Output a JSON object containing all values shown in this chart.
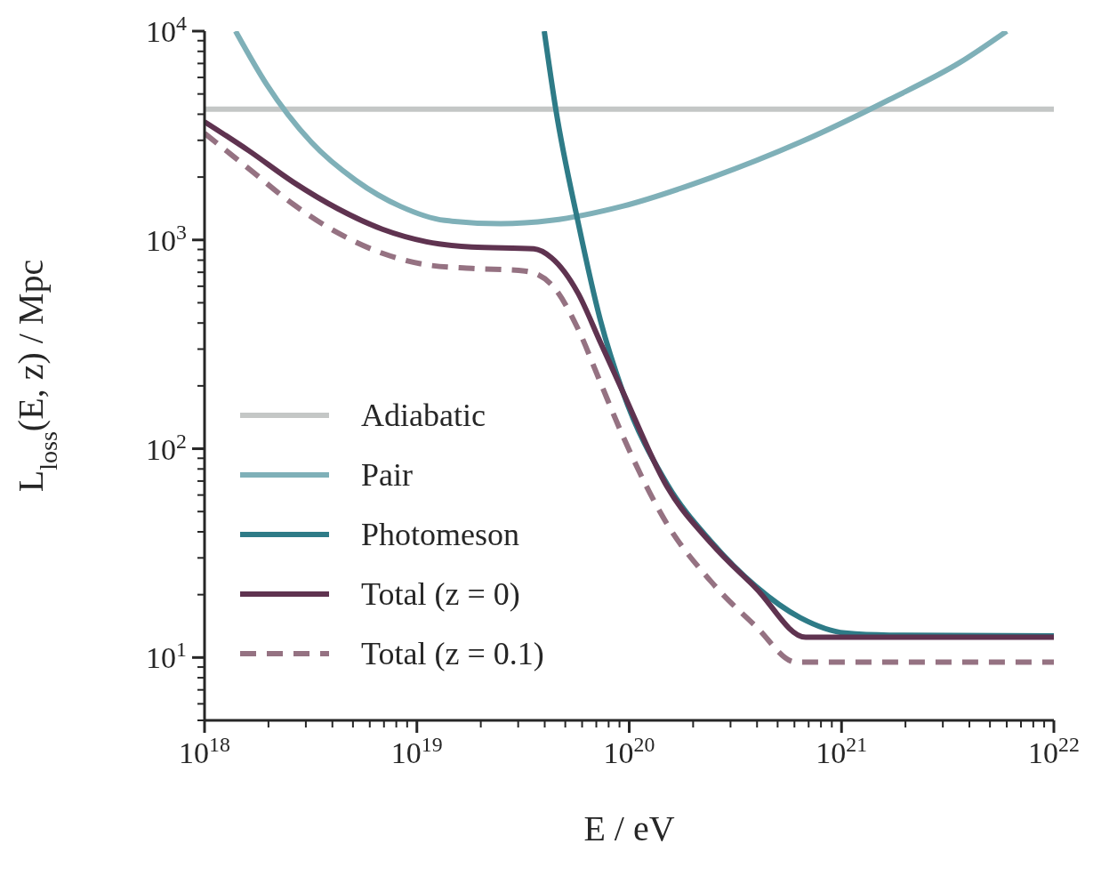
{
  "chart_data": {
    "type": "line",
    "xlabel": "E / eV",
    "ylabel": "L$_{loss}$(E, z) / Mpc",
    "log": "xy",
    "legend": "bottom left",
    "xlim": [
      1e+18,
      1e+22
    ],
    "ylim": [
      5,
      10000
    ],
    "xticks": [
      {
        "value": 1e+18,
        "label": "10$^{18}$"
      },
      {
        "value": 2e+18,
        "label": null
      },
      {
        "value": 3e+18,
        "label": null
      },
      {
        "value": 4e+18,
        "label": null
      },
      {
        "value": 5e+18,
        "label": null
      },
      {
        "value": 6e+18,
        "label": null
      },
      {
        "value": 7e+18,
        "label": null
      },
      {
        "value": 8e+18,
        "label": null
      },
      {
        "value": 9e+18,
        "label": null
      },
      {
        "value": 1e+19,
        "label": "10$^{19}$"
      },
      {
        "value": 2e+19,
        "label": null
      },
      {
        "value": 3e+19,
        "label": null
      },
      {
        "value": 4e+19,
        "label": null
      },
      {
        "value": 5e+19,
        "label": null
      },
      {
        "value": 6e+19,
        "label": null
      },
      {
        "value": 7e+19,
        "label": null
      },
      {
        "value": 8e+19,
        "label": null
      },
      {
        "value": 9e+19,
        "label": null
      },
      {
        "value": 1e+20,
        "label": "10$^{20}$"
      },
      {
        "value": 2e+20,
        "label": null
      },
      {
        "value": 3e+20,
        "label": null
      },
      {
        "value": 4e+20,
        "label": null
      },
      {
        "value": 5e+20,
        "label": null
      },
      {
        "value": 6e+20,
        "label": null
      },
      {
        "value": 7e+20,
        "label": null
      },
      {
        "value": 8e+20,
        "label": null
      },
      {
        "value": 9e+20,
        "label": null
      },
      {
        "value": 1e+21,
        "label": "10$^{21}$"
      },
      {
        "value": 2e+21,
        "label": null
      },
      {
        "value": 3e+21,
        "label": null
      },
      {
        "value": 4e+21,
        "label": null
      },
      {
        "value": 5e+21,
        "label": null
      },
      {
        "value": 6e+21,
        "label": null
      },
      {
        "value": 7e+21,
        "label": null
      },
      {
        "value": 8e+21,
        "label": null
      },
      {
        "value": 9e+21,
        "label": null
      },
      {
        "value": 1e+22,
        "label": "10$^{22}$"
      }
    ],
    "yticks": [
      {
        "value": 5,
        "label": null
      },
      {
        "value": 6,
        "label": null
      },
      {
        "value": 7,
        "label": null
      },
      {
        "value": 8,
        "label": null
      },
      {
        "value": 9,
        "label": null
      },
      {
        "value": 10,
        "label": "10$^{1}$"
      },
      {
        "value": 20,
        "label": null
      },
      {
        "value": 30,
        "label": null
      },
      {
        "value": 40,
        "label": null
      },
      {
        "value": 50,
        "label": null
      },
      {
        "value": 60,
        "label": null
      },
      {
        "value": 70,
        "label": null
      },
      {
        "value": 80,
        "label": null
      },
      {
        "value": 90,
        "label": null
      },
      {
        "value": 100,
        "label": "10$^{2}$"
      },
      {
        "value": 200,
        "label": null
      },
      {
        "value": 300,
        "label": null
      },
      {
        "value": 400,
        "label": null
      },
      {
        "value": 500,
        "label": null
      },
      {
        "value": 600,
        "label": null
      },
      {
        "value": 700,
        "label": null
      },
      {
        "value": 800,
        "label": null
      },
      {
        "value": 900,
        "label": null
      },
      {
        "value": 1000,
        "label": "10$^{3}$"
      },
      {
        "value": 2000,
        "label": null
      },
      {
        "value": 3000,
        "label": null
      },
      {
        "value": 4000,
        "label": null
      },
      {
        "value": 5000,
        "label": null
      },
      {
        "value": 6000,
        "label": null
      },
      {
        "value": 7000,
        "label": null
      },
      {
        "value": 8000,
        "label": null
      },
      {
        "value": 9000,
        "label": null
      },
      {
        "value": 10000,
        "label": "10$^{4}$"
      }
    ],
    "series": [
      {
        "name": "Adiabatic",
        "color": "#c4c7c6",
        "line_style": "solid",
        "x": [
          1e+18,
          1e+22
        ],
        "values": [
          4230,
          4230
        ]
      },
      {
        "name": "Pair",
        "color": "#7fb0b8",
        "line_style": "solid",
        "x": [
          1.4e+18,
          1.96e+18,
          3.18e+18,
          5.15e+18,
          8.34e+18,
          1.35e+19,
          2.48e+19,
          4.3e+19,
          9.3e+19,
          2.44e+20,
          6.4e+20,
          1.68e+21,
          3.63e+21,
          6e+21
        ],
        "values": [
          10000,
          5560,
          2940,
          1930,
          1450,
          1240,
          1195,
          1240,
          1450,
          1990,
          2940,
          4700,
          7100,
          10000
        ]
      },
      {
        "name": "Photomeson",
        "color": "#2e7b87",
        "line_style": "solid",
        "x": [
          3.98e+19,
          4.51e+19,
          5.74e+19,
          7.31e+19,
          9.3e+19,
          1.51e+20,
          2.44e+20,
          3.95e+20,
          6.4e+20,
          1.04e+21,
          1.68e+21,
          1e+22
        ],
        "values": [
          10000,
          4230,
          1220,
          414,
          189,
          67.6,
          35.7,
          21.9,
          15.5,
          13.1,
          12.8,
          12.7
        ]
      },
      {
        "name": "Total (z = 0)",
        "color": "#5f3350",
        "line_style": "solid",
        "x": [
          1e+18,
          1.62e+18,
          2.62e+18,
          4.25e+18,
          6.88e+18,
          1.11e+19,
          1.81e+19,
          3.55e+19,
          4.3e+19,
          5.74e+19,
          7.31e+19,
          9.3e+19,
          1.51e+20,
          2.44e+20,
          3.95e+20,
          6.78e+20,
          1e+22
        ],
        "values": [
          3680,
          2670,
          1890,
          1410,
          1125,
          980,
          925,
          906,
          822,
          556,
          324,
          189,
          65.6,
          35.1,
          21.5,
          12.5,
          12.5
        ]
      },
      {
        "name": "Total (z = 0.1)",
        "color": "#957282",
        "line_style": "dashed",
        "x": [
          1e+18,
          1.62e+18,
          2.62e+18,
          4.25e+18,
          6.88e+18,
          1.11e+19,
          1.81e+19,
          3.22e+19,
          4.3e+19,
          5.74e+19,
          7.31e+19,
          9.3e+19,
          1.51e+20,
          2.44e+20,
          3.95e+20,
          6.1e+20,
          1e+22
        ],
        "values": [
          3240,
          2190,
          1480,
          1080,
          863,
          760,
          731,
          710,
          612,
          375,
          208,
          116,
          43.5,
          23.0,
          14.1,
          9.5,
          9.5
        ]
      }
    ]
  }
}
